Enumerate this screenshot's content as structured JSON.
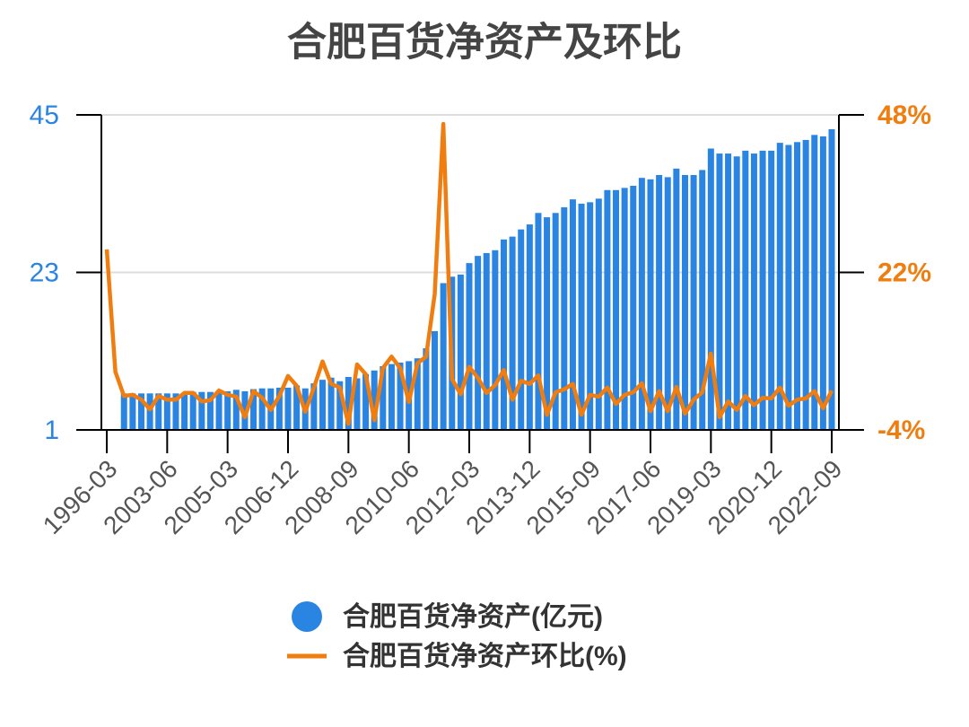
{
  "chart_data": {
    "type": "bar-line",
    "title": "合肥百货净资产及环比",
    "categories": [
      "1996-03",
      null,
      null,
      null,
      null,
      null,
      null,
      "2003-06",
      null,
      null,
      null,
      null,
      null,
      null,
      "2005-03",
      null,
      null,
      null,
      null,
      null,
      null,
      "2006-12",
      null,
      null,
      null,
      null,
      null,
      null,
      "2008-09",
      null,
      null,
      null,
      null,
      null,
      null,
      "2010-06",
      null,
      null,
      null,
      null,
      null,
      null,
      "2012-03",
      null,
      null,
      null,
      null,
      null,
      null,
      "2013-12",
      null,
      null,
      null,
      null,
      null,
      null,
      "2015-09",
      null,
      null,
      null,
      null,
      null,
      null,
      "2017-06",
      null,
      null,
      null,
      null,
      null,
      null,
      "2019-03",
      null,
      null,
      null,
      null,
      null,
      null,
      "2020-12",
      null,
      null,
      null,
      null,
      null,
      null,
      "2022-09"
    ],
    "series": [
      {
        "name": "合肥百货净资产(亿元)",
        "color": "#2a84e2",
        "type": "bar",
        "values": [
          null,
          null,
          6.1,
          6.1,
          6.1,
          6.1,
          6.1,
          6.1,
          6.1,
          6.2,
          6.3,
          6.3,
          6.3,
          6.3,
          6.4,
          6.6,
          6.4,
          6.7,
          6.8,
          6.8,
          6.9,
          6.9,
          7.2,
          6.8,
          7.5,
          8.0,
          8.3,
          7.8,
          8.4,
          8.2,
          8.8,
          9.3,
          9.9,
          10.2,
          10.4,
          10.6,
          11.0,
          12.4,
          14.8,
          21.5,
          22.4,
          22.7,
          24.3,
          25.3,
          25.7,
          26.1,
          27.6,
          28.0,
          29.0,
          29.7,
          31.3,
          30.7,
          31.3,
          32.1,
          33.2,
          32.6,
          32.8,
          33.3,
          34.5,
          34.5,
          34.8,
          35.1,
          36.2,
          36.0,
          36.6,
          36.3,
          37.5,
          36.6,
          36.6,
          37.3,
          40.3,
          39.6,
          39.6,
          39.2,
          40.0,
          39.6,
          40.0,
          40.0,
          41.1,
          40.8,
          41.2,
          41.5,
          42.2,
          42.0,
          43.0
        ]
      },
      {
        "name": "合肥百货净资产环比(%)",
        "color": "#f07d0f",
        "type": "line",
        "axis": "y2",
        "values": [
          25.8,
          5.6,
          1.6,
          1.8,
          1.0,
          -0.6,
          1.6,
          1.0,
          1.0,
          2.1,
          2.1,
          0.7,
          0.9,
          2.5,
          1.8,
          1.5,
          -1.9,
          2.4,
          1.3,
          -0.7,
          1.6,
          4.9,
          3.3,
          -1.0,
          3.0,
          7.3,
          3.6,
          3.0,
          -3.0,
          6.8,
          5.2,
          -2.4,
          6.2,
          8.1,
          6.2,
          0.6,
          7.0,
          8.1,
          18.4,
          46.5,
          4.4,
          1.9,
          6.4,
          4.6,
          2.1,
          3.4,
          5.9,
          1.0,
          4.1,
          3.6,
          5.0,
          -1.5,
          2.2,
          2.7,
          3.6,
          -1.5,
          1.8,
          1.5,
          3.0,
          0.3,
          1.8,
          2.2,
          3.7,
          -0.9,
          2.4,
          -0.9,
          3.1,
          -1.3,
          1.0,
          2.2,
          8.6,
          -1.9,
          0.7,
          -0.7,
          1.6,
          0.1,
          1.3,
          1.2,
          3.0,
          0.0,
          1.0,
          1.2,
          2.4,
          -0.4,
          2.5
        ]
      }
    ],
    "ylim": [
      1,
      45
    ],
    "yticks": [
      1,
      23,
      45
    ],
    "y2lim": [
      -4,
      48
    ],
    "y2ticks": [
      {
        "value": -4,
        "label": "-4%"
      },
      {
        "value": 22,
        "label": "22%"
      },
      {
        "value": 48,
        "label": "48%"
      }
    ],
    "grid": true
  }
}
